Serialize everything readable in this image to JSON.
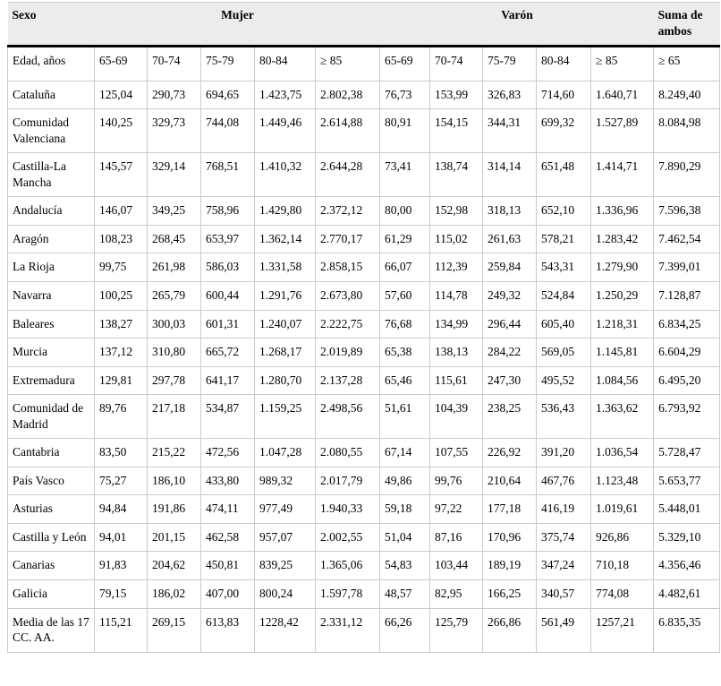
{
  "colors": {
    "header_bg": "#ececec",
    "grid_line": "#cbcbcb",
    "heavy_rule": "#000000"
  },
  "header": {
    "sexo": "Sexo",
    "mujer": "Mujer",
    "varon": "Varón",
    "suma_de_ambos": "Suma de ambos"
  },
  "age_header": {
    "label": "Edad, años",
    "mujer": [
      "65-69",
      "70-74",
      "75-79",
      "80-84",
      "≥ 85"
    ],
    "varon": [
      "65-69",
      "70-74",
      "75-79",
      "80-84",
      "≥ 85"
    ],
    "total": "≥ 65"
  },
  "rows": [
    {
      "region": "Cataluña",
      "mujer": [
        "125,04",
        "290,73",
        "694,65",
        "1.423,75",
        "2.802,38"
      ],
      "varon": [
        "76,73",
        "153,99",
        "326,83",
        "714,60",
        "1.640,71"
      ],
      "suma": "8.249,40"
    },
    {
      "region": "Comunidad Valenciana",
      "mujer": [
        "140,25",
        "329,73",
        "744,08",
        "1.449,46",
        "2.614,88"
      ],
      "varon": [
        "80,91",
        "154,15",
        "344,31",
        "699,32",
        "1.527,89"
      ],
      "suma": "8.084,98"
    },
    {
      "region": "Castilla-La Mancha",
      "mujer": [
        "145,57",
        "329,14",
        "768,51",
        "1.410,32",
        "2.644,28"
      ],
      "varon": [
        "73,41",
        "138,74",
        "314,14",
        "651,48",
        "1.414,71"
      ],
      "suma": "7.890,29"
    },
    {
      "region": "Andalucía",
      "mujer": [
        "146,07",
        "349,25",
        "758,96",
        "1.429,80",
        "2.372,12"
      ],
      "varon": [
        "80,00",
        "152,98",
        "318,13",
        "652,10",
        "1.336,96"
      ],
      "suma": "7.596,38"
    },
    {
      "region": "Aragón",
      "mujer": [
        "108,23",
        "268,45",
        "653,97",
        "1.362,14",
        "2.770,17"
      ],
      "varon": [
        "61,29",
        "115,02",
        "261,63",
        "578,21",
        "1.283,42"
      ],
      "suma": "7.462,54"
    },
    {
      "region": "La Rioja",
      "mujer": [
        "99,75",
        "261,98",
        "586,03",
        "1.331,58",
        "2.858,15"
      ],
      "varon": [
        "66,07",
        "112,39",
        "259,84",
        "543,31",
        "1.279,90"
      ],
      "suma": "7.399,01"
    },
    {
      "region": "Navarra",
      "mujer": [
        "100,25",
        "265,79",
        "600,44",
        "1.291,76",
        "2.673,80"
      ],
      "varon": [
        "57,60",
        "114,78",
        "249,32",
        "524,84",
        "1.250,29"
      ],
      "suma": "7.128,87"
    },
    {
      "region": "Baleares",
      "mujer": [
        "138,27",
        "300,03",
        "601,31",
        "1.240,07",
        "2.222,75"
      ],
      "varon": [
        "76,68",
        "134,99",
        "296,44",
        "605,40",
        "1.218,31"
      ],
      "suma": "6.834,25"
    },
    {
      "region": "Murcia",
      "mujer": [
        "137,12",
        "310,80",
        "665,72",
        "1.268,17",
        "2.019,89"
      ],
      "varon": [
        "65,38",
        "138,13",
        "284,22",
        "569,05",
        "1.145,81"
      ],
      "suma": "6.604,29"
    },
    {
      "region": "Extremadura",
      "mujer": [
        "129,81",
        "297,78",
        "641,17",
        "1.280,70",
        "2.137,28"
      ],
      "varon": [
        "65,46",
        "115,61",
        "247,30",
        "495,52",
        "1.084,56"
      ],
      "suma": "6.495,20"
    },
    {
      "region": "Comunidad de Madrid",
      "mujer": [
        "89,76",
        "217,18",
        "534,87",
        "1.159,25",
        "2.498,56"
      ],
      "varon": [
        "51,61",
        "104,39",
        "238,25",
        "536,43",
        "1.363,62"
      ],
      "suma": "6.793,92"
    },
    {
      "region": "Cantabria",
      "mujer": [
        "83,50",
        "215,22",
        "472,56",
        "1.047,28",
        "2.080,55"
      ],
      "varon": [
        "67,14",
        "107,55",
        "226,92",
        "391,20",
        "1.036,54"
      ],
      "suma": "5.728,47"
    },
    {
      "region": "País Vasco",
      "mujer": [
        "75,27",
        "186,10",
        "433,80",
        "989,32",
        "2.017,79"
      ],
      "varon": [
        "49,86",
        "99,76",
        "210,64",
        "467,76",
        "1.123,48"
      ],
      "suma": "5.653,77"
    },
    {
      "region": "Asturias",
      "mujer": [
        "94,84",
        "191,86",
        "474,11",
        "977,49",
        "1.940,33"
      ],
      "varon": [
        "59,18",
        "97,22",
        "177,18",
        "416,19",
        "1.019,61"
      ],
      "suma": "5.448,01"
    },
    {
      "region": "Castilla y León",
      "mujer": [
        "94,01",
        "201,15",
        "462,58",
        "957,07",
        "2.002,55"
      ],
      "varon": [
        "51,04",
        "87,16",
        "170,96",
        "375,74",
        "926,86"
      ],
      "suma": "5.329,10"
    },
    {
      "region": "Canarias",
      "mujer": [
        "91,83",
        "204,62",
        "450,81",
        "839,25",
        "1.365,06"
      ],
      "varon": [
        "54,83",
        "103,44",
        "189,19",
        "347,24",
        "710,18"
      ],
      "suma": "4.356,46"
    },
    {
      "region": "Galicia",
      "mujer": [
        "79,15",
        "186,02",
        "407,00",
        "800,24",
        "1.597,78"
      ],
      "varon": [
        "48,57",
        "82,95",
        "166,25",
        "340,57",
        "774,08"
      ],
      "suma": "4.482,61"
    },
    {
      "region": "Media de las 17 CC. AA.",
      "mujer": [
        "115,21",
        "269,15",
        "613,83",
        "1228,42",
        "2.331,12"
      ],
      "varon": [
        "66,26",
        "125,79",
        "266,86",
        "561,49",
        "1257,21"
      ],
      "suma": "6.835,35"
    }
  ]
}
